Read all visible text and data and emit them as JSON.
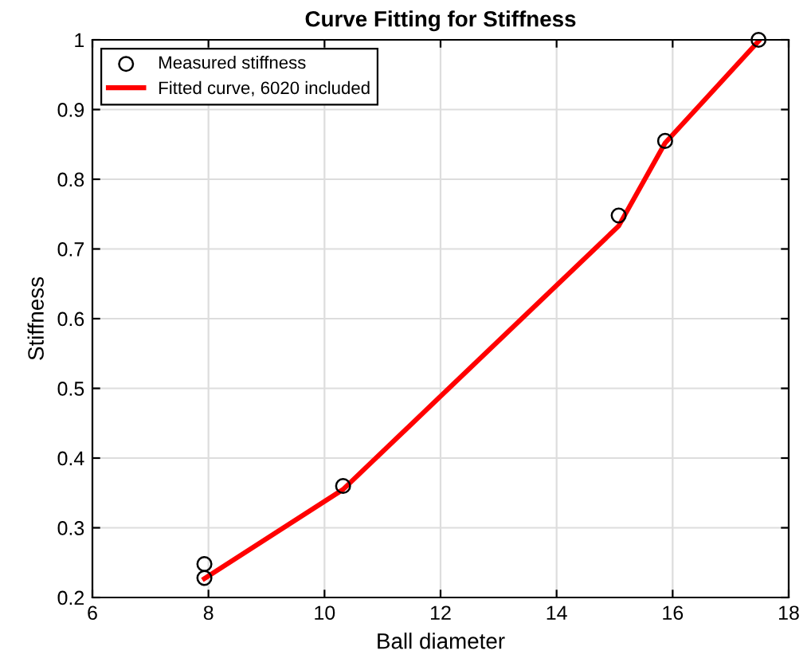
{
  "chart_data": {
    "type": "scatter",
    "title": "Curve Fitting for Stiffness",
    "xlabel": "Ball diameter",
    "ylabel": "Stiffness",
    "series": [
      {
        "name": "Measured stiffness",
        "color": "#000000",
        "marker": "circle",
        "x": [
          7.93,
          7.93,
          10.32,
          15.07,
          15.87,
          17.48
        ],
        "values": [
          0.248,
          0.228,
          0.36,
          0.748,
          0.855,
          1.0
        ]
      },
      {
        "name": "Fitted curve, 6020 included",
        "type": "line",
        "color": "#ff0000",
        "marker": "none",
        "line_style": "solid",
        "x": [
          7.93,
          10.32,
          15.07,
          15.87,
          17.48
        ],
        "values": [
          0.227,
          0.355,
          0.733,
          0.852,
          0.998
        ]
      }
    ],
    "xlim": [
      6,
      18
    ],
    "xticks": [
      6,
      8,
      10,
      12,
      14,
      16,
      18
    ],
    "ylim": [
      0.2,
      1
    ],
    "yticks": [
      0.2,
      0.3,
      0.4,
      0.5,
      0.6,
      0.7,
      0.8,
      0.9,
      1
    ],
    "grid": true,
    "legend": "top left"
  }
}
